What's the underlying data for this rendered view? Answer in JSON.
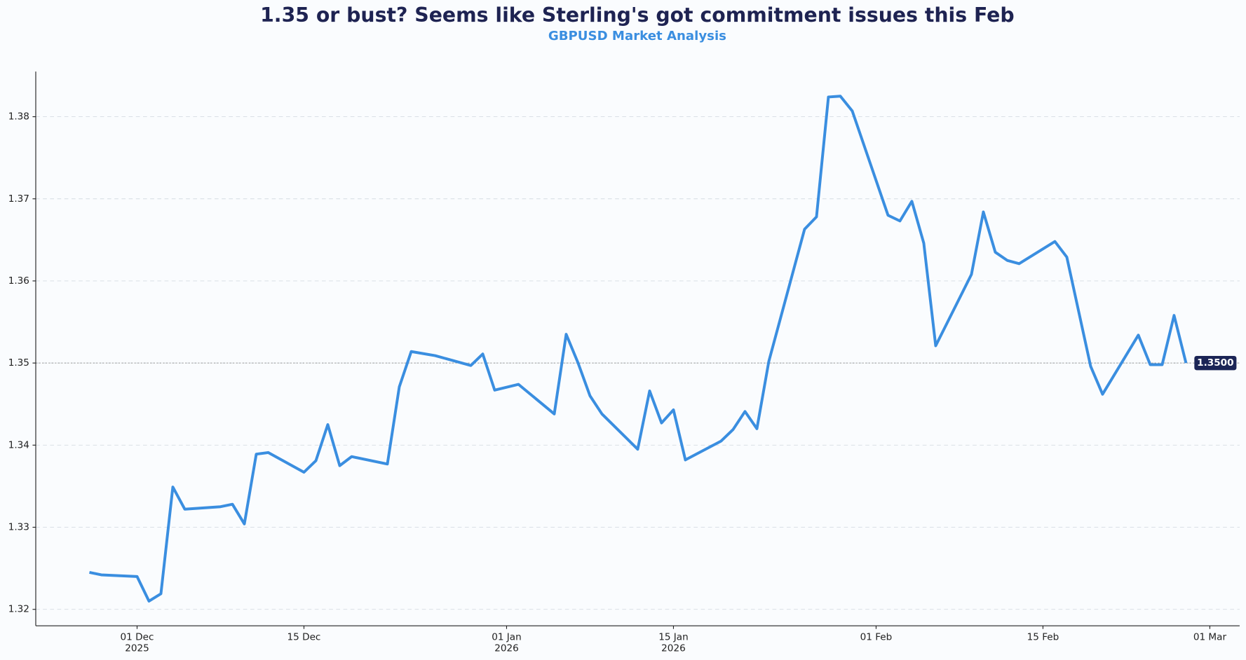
{
  "chart_data": {
    "type": "line",
    "title": "1.35 or bust? Seems like Sterling's got commitment issues this Feb",
    "subtitle": "GBPUSD Market Analysis",
    "x": [
      "2025-11-27",
      "2025-11-28",
      "2025-12-01",
      "2025-12-02",
      "2025-12-03",
      "2025-12-04",
      "2025-12-05",
      "2025-12-08",
      "2025-12-09",
      "2025-12-10",
      "2025-12-11",
      "2025-12-12",
      "2025-12-15",
      "2025-12-16",
      "2025-12-17",
      "2025-12-18",
      "2025-12-19",
      "2025-12-22",
      "2025-12-23",
      "2025-12-24",
      "2025-12-26",
      "2025-12-29",
      "2025-12-30",
      "2025-12-31",
      "2026-01-02",
      "2026-01-05",
      "2026-01-06",
      "2026-01-07",
      "2026-01-08",
      "2026-01-09",
      "2026-01-12",
      "2026-01-13",
      "2026-01-14",
      "2026-01-15",
      "2026-01-16",
      "2026-01-19",
      "2026-01-20",
      "2026-01-21",
      "2026-01-22",
      "2026-01-23",
      "2026-01-26",
      "2026-01-27",
      "2026-01-28",
      "2026-01-29",
      "2026-01-30",
      "2026-02-02",
      "2026-02-03",
      "2026-02-04",
      "2026-02-05",
      "2026-02-06",
      "2026-02-09",
      "2026-02-10",
      "2026-02-11",
      "2026-02-12",
      "2026-02-13",
      "2026-02-16",
      "2026-02-17",
      "2026-02-19",
      "2026-02-20",
      "2026-02-23",
      "2026-02-24",
      "2026-02-25",
      "2026-02-26",
      "2026-02-27"
    ],
    "series": [
      {
        "name": "GBPUSD",
        "color": "#3a8ee0",
        "values": [
          1.3245,
          1.3242,
          1.324,
          1.321,
          1.3219,
          1.3349,
          1.3322,
          1.3325,
          1.3328,
          1.3304,
          1.3389,
          1.3391,
          1.3367,
          1.3381,
          1.3425,
          1.3375,
          1.3386,
          1.3377,
          1.3471,
          1.3514,
          1.3509,
          1.3497,
          1.3511,
          1.3467,
          1.3474,
          1.3438,
          1.3535,
          1.35,
          1.346,
          1.3438,
          1.3395,
          1.3466,
          1.3427,
          1.3443,
          1.3382,
          1.3405,
          1.3419,
          1.3441,
          1.342,
          1.3502,
          1.3663,
          1.3678,
          1.3824,
          1.3825,
          1.3807,
          1.368,
          1.3673,
          1.3697,
          1.3646,
          1.3521,
          1.3608,
          1.3684,
          1.3635,
          1.3625,
          1.3621,
          1.3648,
          1.3629,
          1.3496,
          1.3462,
          1.3534,
          1.3498,
          1.3498,
          1.3558,
          1.35
        ]
      }
    ],
    "last_value_label": "1.3500",
    "reference_line": 1.35,
    "xlim": [
      "2025-11-22T12:00",
      "2026-03-03T12:00"
    ],
    "xticks": [
      {
        "value": "2025-12-01",
        "label": "01 Dec\n2025"
      },
      {
        "value": "2025-12-15",
        "label": "15 Dec"
      },
      {
        "value": "2026-01-01",
        "label": "01 Jan\n2026"
      },
      {
        "value": "2026-01-15",
        "label": "15 Jan\n2026"
      },
      {
        "value": "2026-02-01",
        "label": "01 Feb"
      },
      {
        "value": "2026-02-15",
        "label": "15 Feb"
      },
      {
        "value": "2026-03-01",
        "label": "01 Mar"
      }
    ],
    "ylim": [
      1.318,
      1.3855
    ],
    "yticks": [
      1.32,
      1.33,
      1.34,
      1.35,
      1.36,
      1.37,
      1.38
    ],
    "grid": true
  }
}
